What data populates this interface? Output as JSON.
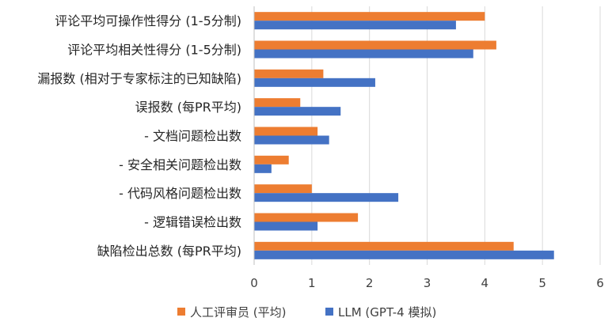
{
  "chart_data": {
    "type": "bar",
    "orientation": "horizontal",
    "categories": [
      "评论平均可操作性得分 (1-5分制)",
      "评论平均相关性得分 (1-5分制)",
      "漏报数 (相对于专家标注的已知缺陷)",
      "误报数 (每PR平均)",
      "- 文档问题检出数",
      "- 安全相关问题检出数",
      "- 代码风格问题检出数",
      "- 逻辑错误检出数",
      "缺陷检出总数 (每PR平均)"
    ],
    "series": [
      {
        "name": "人工评审员 (平均)",
        "color": "#ED7D31",
        "values": [
          4.0,
          4.2,
          1.2,
          0.8,
          1.1,
          0.6,
          1.0,
          1.8,
          4.5
        ]
      },
      {
        "name": "LLM (GPT-4 模拟)",
        "color": "#4472C4",
        "values": [
          3.5,
          3.8,
          2.1,
          1.5,
          1.3,
          0.3,
          2.5,
          1.1,
          5.2
        ]
      }
    ],
    "xlim": [
      0,
      6
    ],
    "xticks": [
      "0",
      "1",
      "2",
      "3",
      "4",
      "5",
      "6"
    ],
    "grid": true,
    "legend_position": "bottom",
    "title": "",
    "xlabel": "",
    "ylabel": ""
  }
}
